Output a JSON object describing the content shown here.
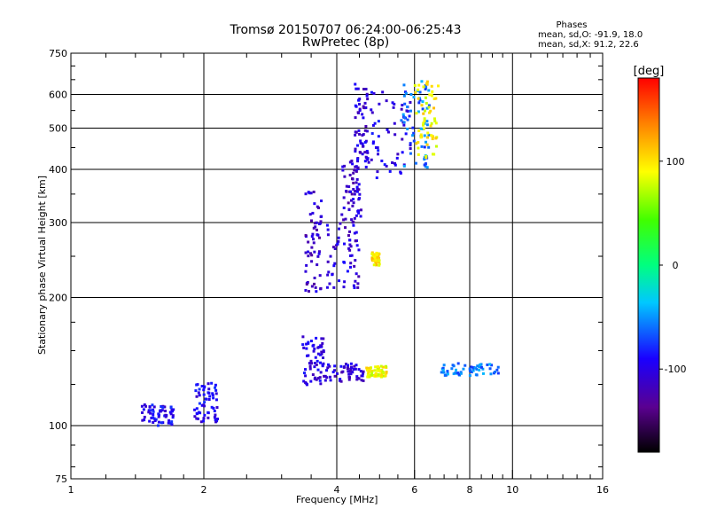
{
  "chart_data": {
    "type": "scatter",
    "title": "Tromsø 20150707 06:24:00-06:25:43",
    "subtitle": "RwPretec (8p)",
    "xlabel": "Frequency [MHz]",
    "ylabel": "Stationary phase Virtual Height [km]",
    "x_scale": "log",
    "y_scale": "log",
    "xlim": [
      1,
      16
    ],
    "ylim": [
      75,
      750
    ],
    "x_ticks": [
      1,
      2,
      4,
      6,
      8,
      10,
      16
    ],
    "x_tick_labels": [
      "1",
      "2",
      "4",
      "6",
      "8",
      "10",
      "16"
    ],
    "y_ticks": [
      75,
      100,
      200,
      300,
      400,
      500,
      600,
      750
    ],
    "y_tick_labels": [
      "75",
      "100",
      "200",
      "300",
      "400",
      "500",
      "600",
      "750"
    ],
    "grid": true,
    "phase_info": {
      "title": "Phases",
      "o_line": "mean, sd,O: -91.9, 18.0",
      "x_line": "mean, sd,X:  91.2, 22.6"
    },
    "colorbar": {
      "label": "[deg]",
      "min": -180,
      "max": 180,
      "ticks": [
        100,
        0,
        -100
      ],
      "tick_labels": [
        "100",
        "0",
        "-100"
      ]
    },
    "clusters": [
      {
        "x": [
          1.45,
          1.72
        ],
        "y": [
          100,
          112
        ],
        "phase": -95
      },
      {
        "x": [
          1.9,
          2.15
        ],
        "y": [
          102,
          127
        ],
        "phase": -95
      },
      {
        "x": [
          3.35,
          3.75
        ],
        "y": [
          124,
          162
        ],
        "phase": -100
      },
      {
        "x": [
          3.7,
          4.6
        ],
        "y": [
          127,
          140
        ],
        "phase": -105
      },
      {
        "x": [
          3.4,
          3.7
        ],
        "y": [
          203,
          360
        ],
        "phase": -110
      },
      {
        "x": [
          3.8,
          4.5
        ],
        "y": [
          208,
          300
        ],
        "phase": -105
      },
      {
        "x": [
          4.1,
          4.55
        ],
        "y": [
          300,
          420
        ],
        "phase": -110
      },
      {
        "x": [
          4.4,
          4.7
        ],
        "y": [
          400,
          640
        ],
        "phase": -105
      },
      {
        "x": [
          4.6,
          5.9
        ],
        "y": [
          380,
          620
        ],
        "phase": -100
      },
      {
        "x": [
          5.6,
          6.5
        ],
        "y": [
          400,
          650
        ],
        "phase": -60
      },
      {
        "x": [
          6.0,
          6.8
        ],
        "y": [
          420,
          650
        ],
        "phase": 95
      },
      {
        "x": [
          4.65,
          5.2
        ],
        "y": [
          130,
          138
        ],
        "phase": 90
      },
      {
        "x": [
          6.9,
          9.3
        ],
        "y": [
          131,
          140
        ],
        "phase": -60
      },
      {
        "x": [
          4.8,
          5.0
        ],
        "y": [
          238,
          255
        ],
        "phase": 100
      }
    ]
  }
}
